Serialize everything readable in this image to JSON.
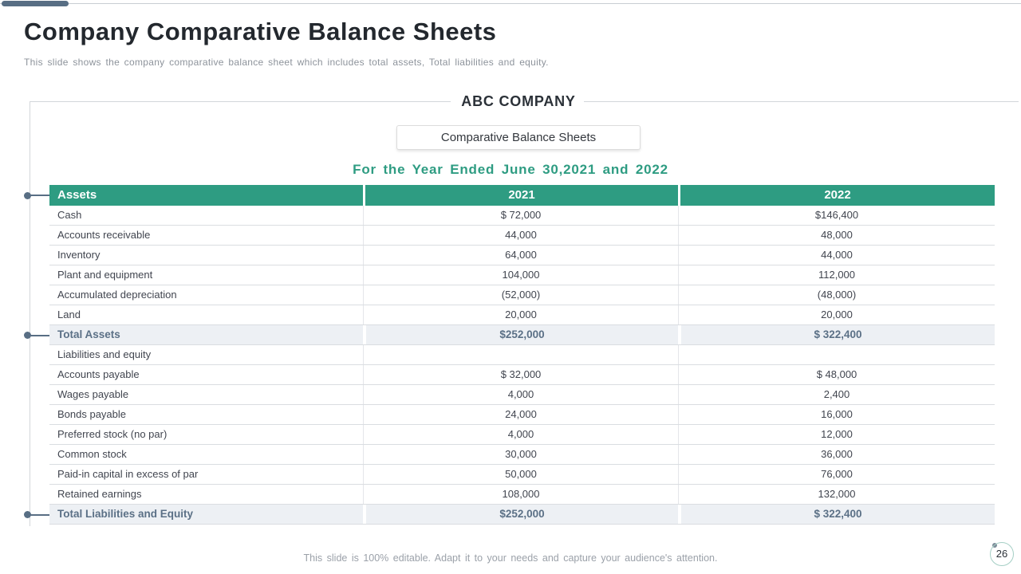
{
  "colors": {
    "accent_teal": "#2E9C82",
    "accent_slate": "#586E84",
    "total_row_bg": "#EDF0F4",
    "total_text": "#5B7086"
  },
  "slide": {
    "title": "Company Comparative Balance Sheets",
    "subtitle": "This slide shows the company comparative balance sheet which includes total assets, Total liabilities and equity.",
    "footer_note": "This slide is 100% editable. Adapt it to your needs and capture your audience's attention.",
    "page_number": "26"
  },
  "sheet": {
    "company": "ABC COMPANY",
    "report_title": "Comparative Balance Sheets",
    "period": "For the Year Ended June 30,2021 and 2022"
  },
  "table": {
    "headers": [
      "Assets",
      "2021",
      "2022"
    ],
    "rows": [
      {
        "label": "Cash",
        "y2021": "$ 72,000",
        "y2022": "$146,400",
        "type": "data"
      },
      {
        "label": "Accounts receivable",
        "y2021": "44,000",
        "y2022": "48,000",
        "type": "data"
      },
      {
        "label": "Inventory",
        "y2021": "64,000",
        "y2022": "44,000",
        "type": "data"
      },
      {
        "label": "Plant and equipment",
        "y2021": "104,000",
        "y2022": "112,000",
        "type": "data"
      },
      {
        "label": "Accumulated depreciation",
        "y2021": "(52,000)",
        "y2022": "(48,000)",
        "type": "data"
      },
      {
        "label": "Land",
        "y2021": "20,000",
        "y2022": "20,000",
        "type": "data"
      },
      {
        "label": "Total Assets",
        "y2021": "$252,000",
        "y2022": "$ 322,400",
        "type": "total"
      },
      {
        "label": "Liabilities and equity",
        "y2021": "",
        "y2022": "",
        "type": "data"
      },
      {
        "label": "Accounts payable",
        "y2021": "$ 32,000",
        "y2022": "$ 48,000",
        "type": "data"
      },
      {
        "label": "Wages payable",
        "y2021": "4,000",
        "y2022": "2,400",
        "type": "data"
      },
      {
        "label": "Bonds payable",
        "y2021": "24,000",
        "y2022": "16,000",
        "type": "data"
      },
      {
        "label": "Preferred stock (no par)",
        "y2021": "4,000",
        "y2022": "12,000",
        "type": "data"
      },
      {
        "label": "Common stock",
        "y2021": "30,000",
        "y2022": "36,000",
        "type": "data"
      },
      {
        "label": "Paid-in capital in excess of par",
        "y2021": "50,000",
        "y2022": "76,000",
        "type": "data"
      },
      {
        "label": "Retained earnings",
        "y2021": "108,000",
        "y2022": "132,000",
        "type": "data"
      },
      {
        "label": "Total Liabilities and Equity",
        "y2021": "$252,000",
        "y2022": "$ 322,400",
        "type": "total"
      }
    ],
    "connector_rows": [
      -1,
      6,
      15
    ]
  }
}
